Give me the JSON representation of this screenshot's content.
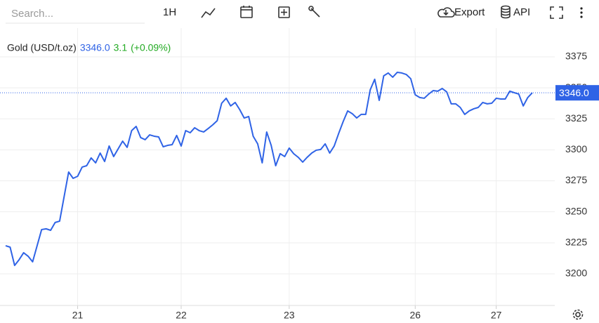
{
  "toolbar": {
    "search": "Search...",
    "interval": "1H",
    "export": "Export",
    "api": "API"
  },
  "chart_data": {
    "type": "line",
    "legend_values": {
      "last": "3346.0",
      "change": "3.1",
      "change_pct": "(+0.09%)"
    },
    "price_line": {
      "value": 3346,
      "label": "3346.0"
    },
    "series": [
      {
        "name": "Gold (USD/t.oz)",
        "color": "#2f63e6",
        "values": [
          3222.7,
          3221.5,
          3206.8,
          3211.4,
          3217,
          3214.2,
          3209.7,
          3222.7,
          3235.7,
          3236.3,
          3235.1,
          3241.4,
          3242.5,
          3262.3,
          3282.1,
          3277,
          3278.7,
          3286.1,
          3287.2,
          3293.5,
          3289.5,
          3297.4,
          3290.6,
          3303.1,
          3294.6,
          3300.8,
          3307,
          3302,
          3315.5,
          3318.9,
          3309.9,
          3308.2,
          3312.1,
          3311,
          3310.4,
          3302.5,
          3303.6,
          3304.2,
          3311.6,
          3303.1,
          3315.5,
          3313.8,
          3317.8,
          3315.5,
          3314.4,
          3317.2,
          3320.1,
          3323.5,
          3337.6,
          3341.6,
          3335.4,
          3338.2,
          3332.5,
          3325.7,
          3326.9,
          3311,
          3304.8,
          3289.5,
          3314.4,
          3303.6,
          3287.2,
          3296.9,
          3294.6,
          3301.4,
          3296.9,
          3294,
          3290.1,
          3294,
          3297.4,
          3299.7,
          3300.3,
          3304.8,
          3297.4,
          3303.1,
          3313.3,
          3322.9,
          3331.4,
          3329.2,
          3325.7,
          3328.6,
          3328.6,
          3348.4,
          3356.9,
          3339.9,
          3359.7,
          3362,
          3358.6,
          3362.5,
          3362,
          3360.8,
          3357.4,
          3344.4,
          3342.2,
          3341.6,
          3345,
          3347.8,
          3347.3,
          3349.5,
          3346.7,
          3337.1,
          3337.1,
          3334.2,
          3328.6,
          3331.4,
          3333.1,
          3334.2,
          3338.2,
          3337.1,
          3337.6,
          3341.6,
          3341,
          3341,
          3347.3,
          3346.1,
          3345,
          3335.4,
          3342.2,
          3346
        ]
      }
    ],
    "x": [
      0,
      1,
      2,
      3,
      4,
      5,
      6,
      7,
      8,
      9,
      10,
      11,
      12,
      13,
      14,
      15,
      16,
      17,
      18,
      19,
      20,
      21,
      22,
      23,
      24,
      25,
      26,
      27,
      28,
      29,
      30,
      31,
      32,
      33,
      34,
      35,
      36,
      37,
      38,
      39,
      40,
      41,
      42,
      43,
      44,
      45,
      46,
      47,
      48,
      49,
      50,
      51,
      52,
      53,
      54,
      55,
      56,
      57,
      58,
      59,
      60,
      61,
      62,
      63,
      64,
      65,
      66,
      67,
      68,
      69,
      70,
      71,
      72,
      73,
      74,
      75,
      76,
      77,
      78,
      79,
      80,
      81,
      82,
      83,
      84,
      85,
      86,
      87,
      88,
      89,
      90,
      91,
      92,
      93,
      94,
      95,
      96,
      97,
      98,
      99,
      100,
      101,
      102,
      103,
      104,
      105,
      106,
      107,
      108,
      109,
      110,
      111,
      112,
      113,
      114,
      115,
      116,
      117
    ],
    "xlim": [
      0,
      122
    ],
    "xticks": [
      {
        "value": 16,
        "label": "21"
      },
      {
        "value": 39,
        "label": "22"
      },
      {
        "value": 63,
        "label": "23"
      },
      {
        "value": 91,
        "label": "26"
      },
      {
        "value": 109,
        "label": "27"
      }
    ],
    "ylim": [
      3174.5,
      3398.2
    ],
    "yticks": [
      3200,
      3225,
      3250,
      3275,
      3300,
      3325,
      3350,
      3375
    ],
    "grid": true
  }
}
